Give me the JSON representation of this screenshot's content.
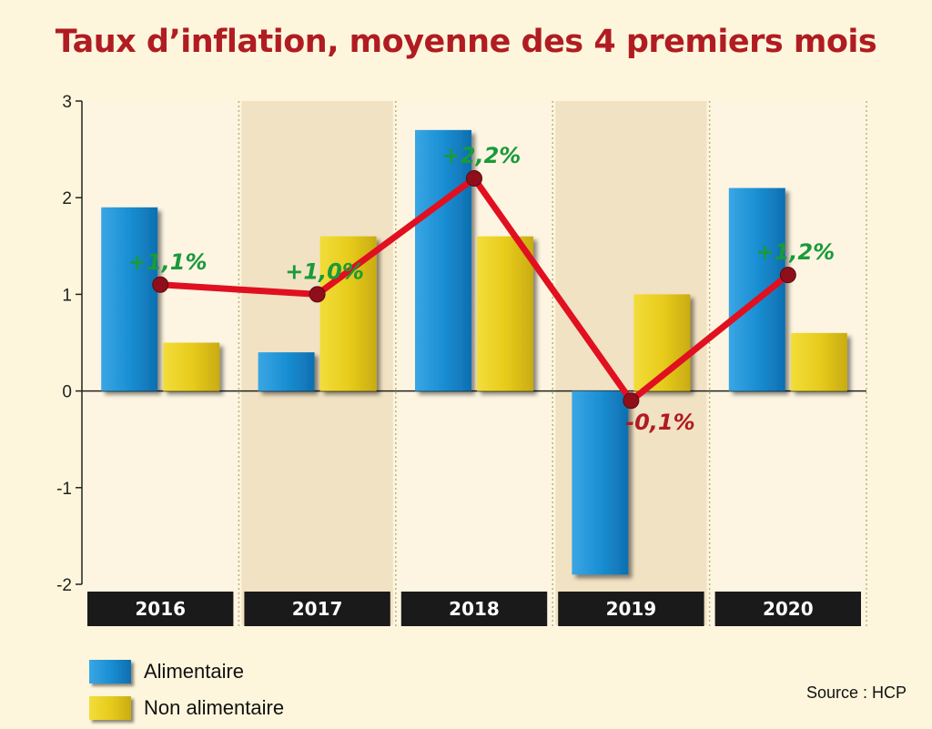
{
  "chart_data": {
    "type": "bar",
    "title": "Taux d’inflation, moyenne des 4 premiers mois",
    "categories": [
      "2016",
      "2017",
      "2018",
      "2019",
      "2020"
    ],
    "ylim": [
      -2,
      3
    ],
    "yticks": [
      3,
      2,
      1,
      0,
      -1,
      -2
    ],
    "series": [
      {
        "name": "Alimentaire",
        "type": "bar",
        "color": "#1a8fd3",
        "values": [
          1.9,
          0.4,
          2.7,
          -1.9,
          2.1
        ]
      },
      {
        "name": "Non alimentaire",
        "type": "bar",
        "color": "#e8cc1c",
        "values": [
          0.5,
          1.6,
          1.6,
          1.0,
          0.6
        ]
      },
      {
        "type": "line",
        "color": "#e01020",
        "values": [
          1.1,
          1.0,
          2.2,
          -0.1,
          1.2
        ],
        "labels": [
          "+1,1%",
          "+1,0%",
          "+2,2%",
          "-0,1%",
          "+1,2%"
        ]
      }
    ],
    "source": "Source : HCP"
  },
  "colors": {
    "title": "#b01c22",
    "positive_label": "#1a9a3a",
    "negative_label": "#b01c22",
    "band_light": "#fdf5e2",
    "band_dark": "#f1e2c3",
    "year_bar": "#1a1a1a"
  }
}
